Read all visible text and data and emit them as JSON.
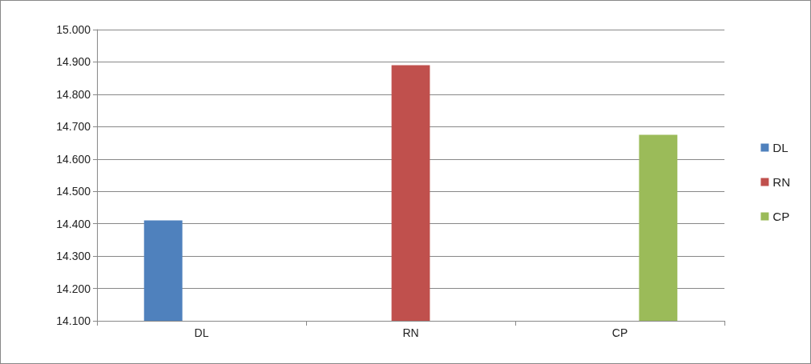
{
  "chart_data": {
    "type": "bar",
    "categories": [
      "DL",
      "RN",
      "CP"
    ],
    "series": [
      {
        "name": "DL",
        "color": "#4f81bd",
        "values": [
          14.41,
          null,
          null
        ]
      },
      {
        "name": "RN",
        "color": "#c0504d",
        "values": [
          null,
          14.89,
          null
        ]
      },
      {
        "name": "CP",
        "color": "#9bbb59",
        "values": [
          null,
          null,
          14.675
        ]
      }
    ],
    "ylim": [
      14.1,
      15.0
    ],
    "yticks": [
      {
        "value": 14.1,
        "label": "14.100"
      },
      {
        "value": 14.2,
        "label": "14.200"
      },
      {
        "value": 14.3,
        "label": "14.300"
      },
      {
        "value": 14.4,
        "label": "14.400"
      },
      {
        "value": 14.5,
        "label": "14.500"
      },
      {
        "value": 14.6,
        "label": "14.600"
      },
      {
        "value": 14.7,
        "label": "14.700"
      },
      {
        "value": 14.8,
        "label": "14.800"
      },
      {
        "value": 14.9,
        "label": "14.900"
      },
      {
        "value": 15.0,
        "label": "15.000"
      }
    ],
    "grid": "y",
    "legend": "right"
  }
}
